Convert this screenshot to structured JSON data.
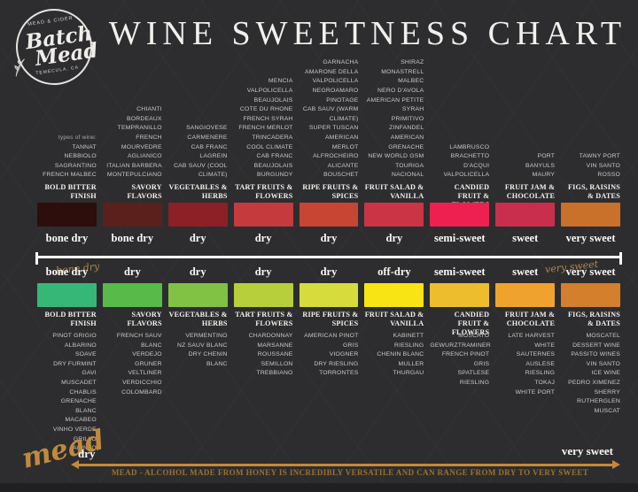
{
  "header": {
    "title": "WINE SWEETNESS CHART",
    "types_of_wine_label": "types of wine:",
    "logo": {
      "tagline_top": "MEAD & CIDER",
      "name_line1": "Batch",
      "name_line2": "Mead",
      "tagline_bottom": "TEMECULA, CA"
    }
  },
  "divider": {
    "left_script": "bone dry",
    "right_script": "very sweet"
  },
  "mead_footer": {
    "script_label": "mead",
    "left_label": "dry",
    "right_label": "very sweet",
    "caption": "MEAD - ALCOHOL MADE FROM HONEY IS INCREDIBLY VERSATILE AND CAN RANGE FROM DRY TO VERY SWEET"
  },
  "colors": {
    "background": "#2d2d2f",
    "gold": "#c08a3e",
    "caption_gold": "#9c722e",
    "list_text": "#c9c9c9",
    "label_text": "#fbf9f5"
  },
  "chart_data": {
    "type": "table",
    "title": "WINE SWEETNESS CHART",
    "description": "Nine flavor-profile columns mapping red wines (top half) and white wines (bottom half) onto a sweetness scale from bone dry to very sweet; mead spans the whole range dry to very sweet.",
    "red_sweetness_scale": [
      "bone dry",
      "bone dry",
      "dry",
      "dry",
      "dry",
      "dry",
      "semi-sweet",
      "sweet",
      "very sweet"
    ],
    "white_sweetness_scale": [
      "bone dry",
      "dry",
      "dry",
      "dry",
      "dry",
      "off-dry",
      "semi-sweet",
      "sweet",
      "very sweet"
    ],
    "columns": [
      {
        "header": "BOLD BITTER FINISH",
        "red_wines": [
          "TANNAT",
          "NEBBIOLO",
          "SAGRANTINO",
          "FRENCH MALBEC"
        ],
        "red_color": "#2e0d0d",
        "red_sweetness": "bone dry",
        "white_wines": [
          "PINOT GRIGIO",
          "ALBARINO",
          "SOAVE",
          "DRY FURMINT",
          "GAVI",
          "MUSCADET",
          "CHABLIS",
          "GRENACHE",
          "BLANC",
          "MACABEO",
          "VINHO VERDE",
          "GRILLO",
          "ARINTO"
        ],
        "white_color": "#36b778",
        "white_sweetness": "bone dry"
      },
      {
        "header": "SAVORY FLAVORS",
        "red_wines": [
          "CHIANTI",
          "BORDEAUX",
          "TEMPRANILLO",
          "FRENCH",
          "MOURVEDRE",
          "AGLIANICO",
          "ITALIAN BARBERA",
          "MONTEPULCIANO"
        ],
        "red_color": "#5b201c",
        "red_sweetness": "bone dry",
        "white_wines": [
          "FRENCH SAUV",
          "BLANC",
          "VERDEJO",
          "GRUNER",
          "VELTLINER",
          "VERDICCHIO",
          "COLOMBARD"
        ],
        "white_color": "#57ba49",
        "white_sweetness": "dry"
      },
      {
        "header": "VEGETABLES & HERBS",
        "red_wines": [
          "SANGIOVESE",
          "CARMENERE",
          "CAB FRANC",
          "LAGREIN",
          "CAB SAUV (COOL",
          "CLIMATE)"
        ],
        "red_color": "#8d2026",
        "red_sweetness": "dry",
        "white_wines": [
          "VERMENTINO",
          "NZ SAUV BLANC",
          "DRY CHENIN",
          "BLANC"
        ],
        "white_color": "#81c244",
        "white_sweetness": "dry"
      },
      {
        "header": "TART FRUITS & FLOWERS",
        "red_wines": [
          "MENCIA",
          "VALPOLICELLA",
          "BEAUJOLAIS",
          "COTE DU RHONE",
          "FRENCH SYRAH",
          "FRENCH MERLOT",
          "TRINCADERA",
          "COOL CLIMATE",
          "CAB FRANC",
          "BEAUJOLAIS",
          "BURGUNDY"
        ],
        "red_color": "#c43a3d",
        "red_sweetness": "dry",
        "white_wines": [
          "CHARDONNAY",
          "MARSANNE",
          "ROUSSANE",
          "SEMILLON",
          "TREBBIANO"
        ],
        "white_color": "#b7cf3b",
        "white_sweetness": "dry"
      },
      {
        "header": "RIPE FRUITS & SPICES",
        "red_wines": [
          "GARNACHA",
          "AMARONE DELLA",
          "VALPOLICELLA",
          "NEGROAMARO",
          "PINOTAGE",
          "CAB SAUV (WARM",
          "CLIMATE)",
          "SUPER TUSCAN",
          "AMERICAN",
          "MERLOT",
          "ALFROCHEIRO",
          "ALICANTE",
          "BOUSCHET"
        ],
        "red_color": "#c84534",
        "red_sweetness": "dry",
        "white_wines": [
          "AMERICAN PINOT",
          "GRIS",
          "VIOGNER",
          "DRY RIESLING",
          "TORRONTES"
        ],
        "white_color": "#d7dc3d",
        "white_sweetness": "dry"
      },
      {
        "header": "FRUIT SALAD & VANILLA",
        "red_wines": [
          "SHIRAZ",
          "MONASTRELL",
          "MALBEC",
          "NERO D'AVOLA",
          "AMERICAN PETITE",
          "SYRAH",
          "PRIMITIVO",
          "ZINFANDEL",
          "AMERICAN",
          "GRENACHE",
          "NEW WORLD GSM",
          "TOURIGA",
          "NACIONAL"
        ],
        "red_color": "#ca3545",
        "red_sweetness": "dry",
        "white_wines": [
          "KABINETT",
          "RIESLING",
          "CHENIN BLANC",
          "MULLER",
          "THURGAU"
        ],
        "white_color": "#f8e414",
        "white_sweetness": "off-dry"
      },
      {
        "header": "CANDIED FRUIT & FLOWERS",
        "red_wines": [
          "LAMBRUSCO",
          "BRACHETTO",
          "D'ACQUI",
          "VALPOLICELLA"
        ],
        "red_color": "#ee2050",
        "red_sweetness": "semi-sweet",
        "white_wines": [
          "MOSCATO",
          "GEWURZTRAMINER",
          "FRENCH PINOT",
          "GRIS",
          "SPATLESE",
          "RIESLING"
        ],
        "white_color": "#edbd2e",
        "white_sweetness": "semi-sweet"
      },
      {
        "header": "FRUIT JAM & CHOCOLATE",
        "red_wines": [
          "PORT",
          "BANYULS",
          "MAURY"
        ],
        "red_color": "#c92e4c",
        "red_sweetness": "sweet",
        "white_wines": [
          "LATE HARVEST",
          "WHITE",
          "SAUTERNES",
          "AUSLESE",
          "RIESLING",
          "TOKAJ",
          "WHITE PORT"
        ],
        "white_color": "#f0a22f",
        "white_sweetness": "sweet"
      },
      {
        "header": "FIGS, RAISINS & DATES",
        "red_wines": [
          "TAWNY PORT",
          "VIN SANTO",
          "ROSSO"
        ],
        "red_color": "#c9702b",
        "red_sweetness": "very sweet",
        "white_wines": [
          "MOSCATEL",
          "DESSERT WINE",
          "PASSITO WINES",
          "VIN SANTO",
          "ICE WINE",
          "PEDRO XIMENEZ",
          "SHERRY",
          "RUTHERGLEN",
          "MUSCAT"
        ],
        "white_color": "#d37f2b",
        "white_sweetness": "very sweet"
      }
    ]
  }
}
